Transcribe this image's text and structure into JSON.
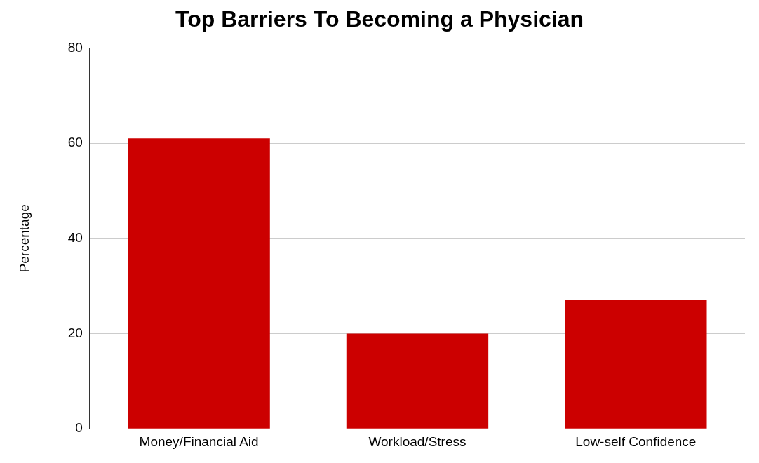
{
  "chart_data": {
    "type": "bar",
    "title": "Top Barriers To Becoming a Physician",
    "ylabel": "Percentage",
    "categories": [
      "Money/Financial Aid",
      "Workload/Stress",
      "Low-self Confidence"
    ],
    "values": [
      61,
      20,
      27
    ],
    "color": "#cc0000",
    "ylim": [
      0,
      80
    ],
    "yticks": [
      0,
      20,
      40,
      60,
      80
    ],
    "grid": "y"
  }
}
